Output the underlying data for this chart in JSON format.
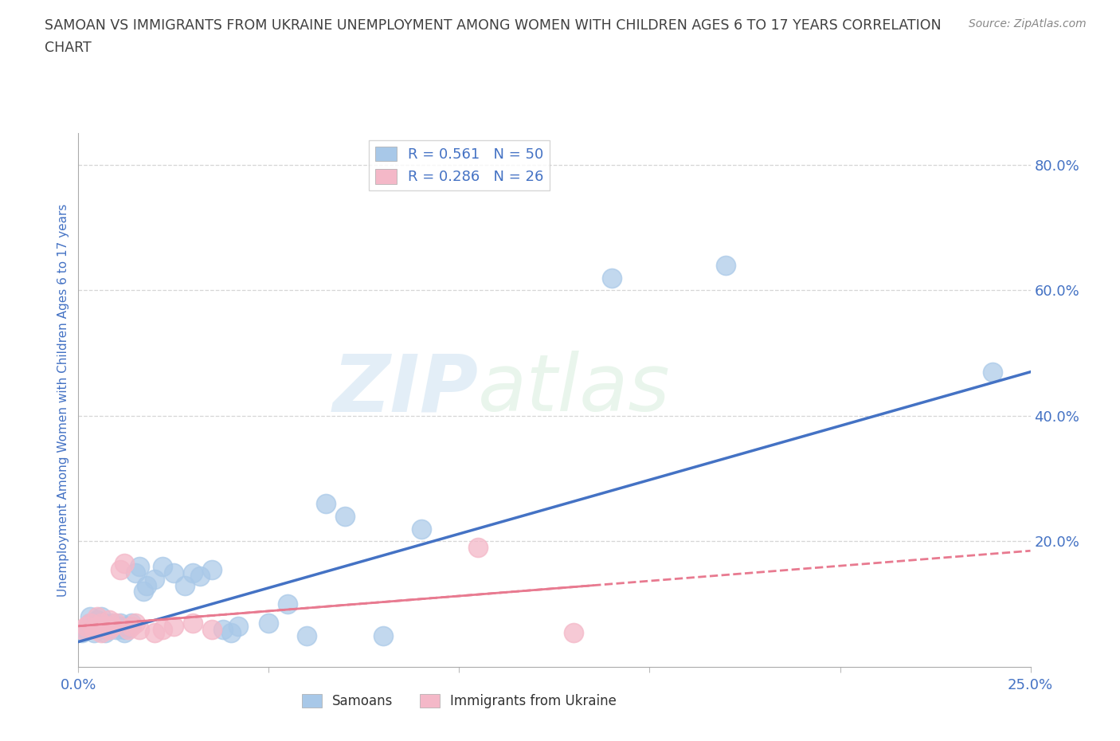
{
  "title_line1": "SAMOAN VS IMMIGRANTS FROM UKRAINE UNEMPLOYMENT AMONG WOMEN WITH CHILDREN AGES 6 TO 17 YEARS CORRELATION",
  "title_line2": "CHART",
  "source": "Source: ZipAtlas.com",
  "ylabel": "Unemployment Among Women with Children Ages 6 to 17 years",
  "xlim": [
    0.0,
    0.25
  ],
  "ylim": [
    0.0,
    0.85
  ],
  "y_ticks_right": [
    0.2,
    0.4,
    0.6,
    0.8
  ],
  "y_tick_labels_right": [
    "20.0%",
    "40.0%",
    "60.0%",
    "80.0%"
  ],
  "watermark_zip": "ZIP",
  "watermark_atlas": "atlas",
  "legend_R1": "R = ",
  "legend_V1": "0.561",
  "legend_N1": "  N = ",
  "legend_NV1": "50",
  "legend_R2": "R = ",
  "legend_V2": "0.286",
  "legend_N2": "  N = ",
  "legend_NV2": "26",
  "samoans_color": "#a8c8e8",
  "ukraine_color": "#f4b8c8",
  "samoans_line_color": "#4472c4",
  "ukraine_line_color": "#e87a90",
  "background_color": "#ffffff",
  "grid_color": "#cccccc",
  "title_color": "#404040",
  "axis_label_color": "#4472c4",
  "tick_color": "#4472c4",
  "samoan_x": [
    0.001,
    0.002,
    0.003,
    0.003,
    0.004,
    0.004,
    0.005,
    0.005,
    0.005,
    0.006,
    0.006,
    0.006,
    0.007,
    0.007,
    0.007,
    0.008,
    0.008,
    0.009,
    0.01,
    0.01,
    0.011,
    0.011,
    0.012,
    0.012,
    0.013,
    0.014,
    0.015,
    0.016,
    0.017,
    0.018,
    0.02,
    0.022,
    0.025,
    0.028,
    0.03,
    0.032,
    0.035,
    0.038,
    0.04,
    0.042,
    0.05,
    0.055,
    0.06,
    0.065,
    0.07,
    0.08,
    0.09,
    0.14,
    0.17,
    0.24
  ],
  "samoan_y": [
    0.055,
    0.06,
    0.07,
    0.08,
    0.055,
    0.07,
    0.06,
    0.065,
    0.075,
    0.065,
    0.07,
    0.08,
    0.055,
    0.06,
    0.07,
    0.06,
    0.065,
    0.07,
    0.06,
    0.065,
    0.065,
    0.07,
    0.055,
    0.06,
    0.065,
    0.07,
    0.15,
    0.16,
    0.12,
    0.13,
    0.14,
    0.16,
    0.15,
    0.13,
    0.15,
    0.145,
    0.155,
    0.06,
    0.055,
    0.065,
    0.07,
    0.1,
    0.05,
    0.26,
    0.24,
    0.05,
    0.22,
    0.62,
    0.64,
    0.47
  ],
  "ukraine_x": [
    0.001,
    0.002,
    0.003,
    0.004,
    0.005,
    0.005,
    0.006,
    0.006,
    0.007,
    0.008,
    0.008,
    0.009,
    0.01,
    0.011,
    0.012,
    0.013,
    0.014,
    0.015,
    0.016,
    0.02,
    0.022,
    0.025,
    0.03,
    0.035,
    0.105,
    0.13
  ],
  "ukraine_y": [
    0.06,
    0.065,
    0.07,
    0.06,
    0.065,
    0.08,
    0.055,
    0.07,
    0.065,
    0.06,
    0.075,
    0.065,
    0.07,
    0.155,
    0.165,
    0.06,
    0.065,
    0.07,
    0.06,
    0.055,
    0.06,
    0.065,
    0.07,
    0.06,
    0.19,
    0.055
  ],
  "sam_trend_x0": 0.0,
  "sam_trend_y0": 0.04,
  "sam_trend_x1": 0.25,
  "sam_trend_y1": 0.47,
  "ukr_trend_x0": 0.0,
  "ukr_trend_y0": 0.065,
  "ukr_trend_x1": 0.25,
  "ukr_trend_y1": 0.185
}
